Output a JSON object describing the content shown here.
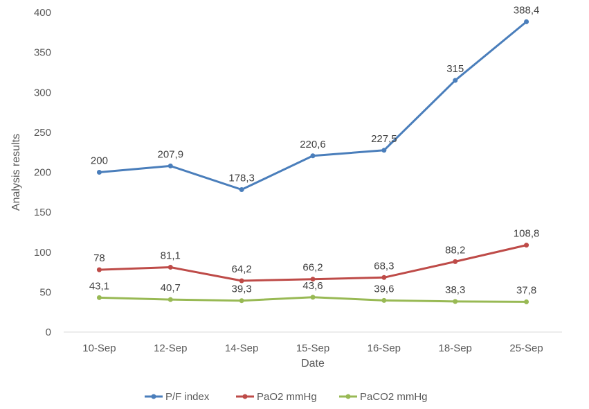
{
  "chart_data": {
    "type": "line",
    "categories": [
      "10-Sep",
      "12-Sep",
      "14-Sep",
      "15-Sep",
      "16-Sep",
      "18-Sep",
      "25-Sep"
    ],
    "series": [
      {
        "name": "P/F index",
        "color": "#4a7ebb",
        "values": [
          200,
          207.9,
          178.3,
          220.6,
          227.5,
          315,
          388.4
        ],
        "labels": [
          "200",
          "207,9",
          "178,3",
          "220,6",
          "227,5",
          "315",
          "388,4"
        ]
      },
      {
        "name": "PaO2 mmHg",
        "color": "#be4b48",
        "values": [
          78,
          81.1,
          64.2,
          66.2,
          68.3,
          88.2,
          108.8
        ],
        "labels": [
          "78",
          "81,1",
          "64,2",
          "66,2",
          "68,3",
          "88,2",
          "108,8"
        ]
      },
      {
        "name": "PaCO2 mmHg",
        "color": "#98b954",
        "values": [
          43.1,
          40.7,
          39.3,
          43.6,
          39.6,
          38.3,
          37.8
        ],
        "labels": [
          "43,1",
          "40,7",
          "39,3",
          "43,6",
          "39,6",
          "38,3",
          "37,8"
        ]
      }
    ],
    "xlabel": "Date",
    "ylabel": "Analysis results",
    "ylim": [
      0,
      400
    ],
    "yticks": [
      0,
      50,
      100,
      150,
      200,
      250,
      300,
      350,
      400
    ],
    "grid": false,
    "legend": "bottom"
  }
}
